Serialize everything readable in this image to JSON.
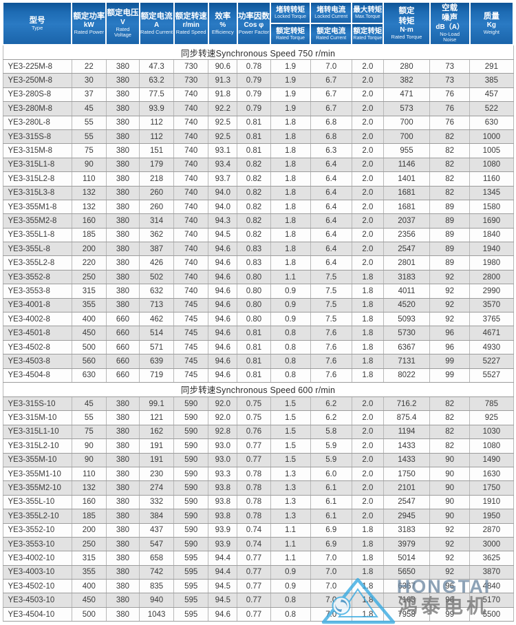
{
  "colors": {
    "header_blue": "#1d6bb3",
    "header_blue_light": "#2a7ac3",
    "stripe_gray": "#e2e2e2",
    "stripe_white": "#fdfdfd",
    "grid_line": "#9c9c9c",
    "watermark_azure": "#35a9e1",
    "watermark_text_blue": "#6e89a3",
    "watermark_text_gray": "#757575"
  },
  "watermark": {
    "brand": "HONGTAI",
    "brand_zh": "鸿泰电机"
  },
  "table": {
    "columns": [
      {
        "id": "type",
        "lines": [
          "型号",
          "Type"
        ]
      },
      {
        "id": "rated-power",
        "lines": [
          "额定功率",
          "kW",
          "Rated Power"
        ]
      },
      {
        "id": "rated-voltage",
        "lines": [
          "额定电压",
          "V",
          "Rated Voltage"
        ]
      },
      {
        "id": "rated-current",
        "lines": [
          "额定电流",
          "A",
          "Rated Current"
        ]
      },
      {
        "id": "rated-speed",
        "lines": [
          "额定转速",
          "r/min",
          "Rated Speed"
        ]
      },
      {
        "id": "efficiency",
        "lines": [
          "效率",
          "%",
          "Efficiency"
        ]
      },
      {
        "id": "power-factor",
        "lines": [
          "功率因数",
          "Cos φ",
          "Power Factor"
        ]
      },
      {
        "id": "locked-torque-ratio",
        "top": [
          "堵转转矩",
          "Locked Torque"
        ],
        "bottom": [
          "额定转矩",
          "Rated Torque"
        ]
      },
      {
        "id": "locked-current-ratio",
        "top": [
          "堵转电流",
          "Locked Current"
        ],
        "bottom": [
          "额定电流",
          "Rated Current"
        ]
      },
      {
        "id": "max-torque-ratio",
        "top": [
          "最大转矩",
          "Max.Torque"
        ],
        "bottom": [
          "额定转矩",
          "Rated Torque"
        ]
      },
      {
        "id": "rated-torque",
        "lines": [
          "额定",
          "转矩",
          "N·m",
          "Rated Torque"
        ]
      },
      {
        "id": "no-load-noise",
        "lines": [
          "空载",
          "噪声",
          "dB（A）",
          "No-Load",
          "Noise"
        ]
      },
      {
        "id": "weight",
        "lines": [
          "质量",
          "Kg",
          "Weight"
        ]
      }
    ],
    "sections": [
      {
        "title": "同步转速Synchronous Speed 750 r/min",
        "rows": [
          [
            "YE3-225M-8",
            "22",
            "380",
            "47.3",
            "730",
            "90.6",
            "0.78",
            "1.9",
            "7.0",
            "2.0",
            "280",
            "73",
            "291"
          ],
          [
            "YE3-250M-8",
            "30",
            "380",
            "63.2",
            "730",
            "91.3",
            "0.79",
            "1.9",
            "6.7",
            "2.0",
            "382",
            "73",
            "385"
          ],
          [
            "YE3-280S-8",
            "37",
            "380",
            "77.5",
            "740",
            "91.8",
            "0.79",
            "1.9",
            "6.7",
            "2.0",
            "471",
            "76",
            "457"
          ],
          [
            "YE3-280M-8",
            "45",
            "380",
            "93.9",
            "740",
            "92.2",
            "0.79",
            "1.9",
            "6.7",
            "2.0",
            "573",
            "76",
            "522"
          ],
          [
            "YE3-280L-8",
            "55",
            "380",
            "112",
            "740",
            "92.5",
            "0.81",
            "1.8",
            "6.8",
            "2.0",
            "700",
            "76",
            "630"
          ],
          [
            "YE3-315S-8",
            "55",
            "380",
            "112",
            "740",
            "92.5",
            "0.81",
            "1.8",
            "6.8",
            "2.0",
            "700",
            "82",
            "1000"
          ],
          [
            "YE3-315M-8",
            "75",
            "380",
            "151",
            "740",
            "93.1",
            "0.81",
            "1.8",
            "6.3",
            "2.0",
            "955",
            "82",
            "1005"
          ],
          [
            "YE3-315L1-8",
            "90",
            "380",
            "179",
            "740",
            "93.4",
            "0.82",
            "1.8",
            "6.4",
            "2.0",
            "1146",
            "82",
            "1080"
          ],
          [
            "YE3-315L2-8",
            "110",
            "380",
            "218",
            "740",
            "93.7",
            "0.82",
            "1.8",
            "6.4",
            "2.0",
            "1401",
            "82",
            "1160"
          ],
          [
            "YE3-315L3-8",
            "132",
            "380",
            "260",
            "740",
            "94.0",
            "0.82",
            "1.8",
            "6.4",
            "2.0",
            "1681",
            "82",
            "1345"
          ],
          [
            "YE3-355M1-8",
            "132",
            "380",
            "260",
            "740",
            "94.0",
            "0.82",
            "1.8",
            "6.4",
            "2.0",
            "1681",
            "89",
            "1580"
          ],
          [
            "YE3-355M2-8",
            "160",
            "380",
            "314",
            "740",
            "94.3",
            "0.82",
            "1.8",
            "6.4",
            "2.0",
            "2037",
            "89",
            "1690"
          ],
          [
            "YE3-355L1-8",
            "185",
            "380",
            "362",
            "740",
            "94.5",
            "0.82",
            "1.8",
            "6.4",
            "2.0",
            "2356",
            "89",
            "1840"
          ],
          [
            "YE3-355L-8",
            "200",
            "380",
            "387",
            "740",
            "94.6",
            "0.83",
            "1.8",
            "6.4",
            "2.0",
            "2547",
            "89",
            "1940"
          ],
          [
            "YE3-355L2-8",
            "220",
            "380",
            "426",
            "740",
            "94.6",
            "0.83",
            "1.8",
            "6.4",
            "2.0",
            "2801",
            "89",
            "1980"
          ],
          [
            "YE3-3552-8",
            "250",
            "380",
            "502",
            "740",
            "94.6",
            "0.80",
            "1.1",
            "7.5",
            "1.8",
            "3183",
            "92",
            "2800"
          ],
          [
            "YE3-3553-8",
            "315",
            "380",
            "632",
            "740",
            "94.6",
            "0.80",
            "0.9",
            "7.5",
            "1.8",
            "4011",
            "92",
            "2990"
          ],
          [
            "YE3-4001-8",
            "355",
            "380",
            "713",
            "745",
            "94.6",
            "0.80",
            "0.9",
            "7.5",
            "1.8",
            "4520",
            "92",
            "3570"
          ],
          [
            "YE3-4002-8",
            "400",
            "660",
            "462",
            "745",
            "94.6",
            "0.80",
            "0.9",
            "7.5",
            "1.8",
            "5093",
            "92",
            "3765"
          ],
          [
            "YE3-4501-8",
            "450",
            "660",
            "514",
            "745",
            "94.6",
            "0.81",
            "0.8",
            "7.6",
            "1.8",
            "5730",
            "96",
            "4671"
          ],
          [
            "YE3-4502-8",
            "500",
            "660",
            "571",
            "745",
            "94.6",
            "0.81",
            "0.8",
            "7.6",
            "1.8",
            "6367",
            "96",
            "4930"
          ],
          [
            "YE3-4503-8",
            "560",
            "660",
            "639",
            "745",
            "94.6",
            "0.81",
            "0.8",
            "7.6",
            "1.8",
            "7131",
            "99",
            "5227"
          ],
          [
            "YE3-4504-8",
            "630",
            "660",
            "719",
            "745",
            "94.6",
            "0.81",
            "0.8",
            "7.6",
            "1.8",
            "8022",
            "99",
            "5527"
          ]
        ]
      },
      {
        "title": "同步转速Synchronous Speed 600 r/min",
        "rows": [
          [
            "YE3-315S-10",
            "45",
            "380",
            "99.1",
            "590",
            "92.0",
            "0.75",
            "1.5",
            "6.2",
            "2.0",
            "716.2",
            "82",
            "785"
          ],
          [
            "YE3-315M-10",
            "55",
            "380",
            "121",
            "590",
            "92.0",
            "0.75",
            "1.5",
            "6.2",
            "2.0",
            "875.4",
            "82",
            "925"
          ],
          [
            "YE3-315L1-10",
            "75",
            "380",
            "162",
            "590",
            "92.8",
            "0.76",
            "1.5",
            "5.8",
            "2.0",
            "1194",
            "82",
            "1030"
          ],
          [
            "YE3-315L2-10",
            "90",
            "380",
            "191",
            "590",
            "93.0",
            "0.77",
            "1.5",
            "5.9",
            "2.0",
            "1433",
            "82",
            "1080"
          ],
          [
            "YE3-355M-10",
            "90",
            "380",
            "191",
            "590",
            "93.0",
            "0.77",
            "1.5",
            "5.9",
            "2.0",
            "1433",
            "90",
            "1490"
          ],
          [
            "YE3-355M1-10",
            "110",
            "380",
            "230",
            "590",
            "93.3",
            "0.78",
            "1.3",
            "6.0",
            "2.0",
            "1750",
            "90",
            "1630"
          ],
          [
            "YE3-355M2-10",
            "132",
            "380",
            "274",
            "590",
            "93.8",
            "0.78",
            "1.3",
            "6.1",
            "2.0",
            "2101",
            "90",
            "1750"
          ],
          [
            "YE3-355L-10",
            "160",
            "380",
            "332",
            "590",
            "93.8",
            "0.78",
            "1.3",
            "6.1",
            "2.0",
            "2547",
            "90",
            "1910"
          ],
          [
            "YE3-355L2-10",
            "185",
            "380",
            "384",
            "590",
            "93.8",
            "0.78",
            "1.3",
            "6.1",
            "2.0",
            "2945",
            "90",
            "1950"
          ],
          [
            "YE3-3552-10",
            "200",
            "380",
            "437",
            "590",
            "93.9",
            "0.74",
            "1.1",
            "6.9",
            "1.8",
            "3183",
            "92",
            "2870"
          ],
          [
            "YE3-3553-10",
            "250",
            "380",
            "547",
            "590",
            "93.9",
            "0.74",
            "1.1",
            "6.9",
            "1.8",
            "3979",
            "92",
            "3000"
          ],
          [
            "YE3-4002-10",
            "315",
            "380",
            "658",
            "595",
            "94.4",
            "0.77",
            "1.1",
            "7.0",
            "1.8",
            "5014",
            "92",
            "3625"
          ],
          [
            "YE3-4003-10",
            "355",
            "380",
            "742",
            "595",
            "94.4",
            "0.77",
            "0.9",
            "7.0",
            "1.8",
            "5650",
            "92",
            "3870"
          ],
          [
            "YE3-4502-10",
            "400",
            "380",
            "835",
            "595",
            "94.5",
            "0.77",
            "0.9",
            "7.0",
            "1.8",
            "6367",
            "96",
            "4840"
          ],
          [
            "YE3-4503-10",
            "450",
            "380",
            "940",
            "595",
            "94.5",
            "0.77",
            "0.8",
            "7.0",
            "1.8",
            "7163",
            "96",
            "5170"
          ],
          [
            "YE3-4504-10",
            "500",
            "380",
            "1043",
            "595",
            "94.6",
            "0.77",
            "0.8",
            "7.0",
            "1.8",
            "7958",
            "99",
            "5500"
          ]
        ]
      }
    ]
  }
}
